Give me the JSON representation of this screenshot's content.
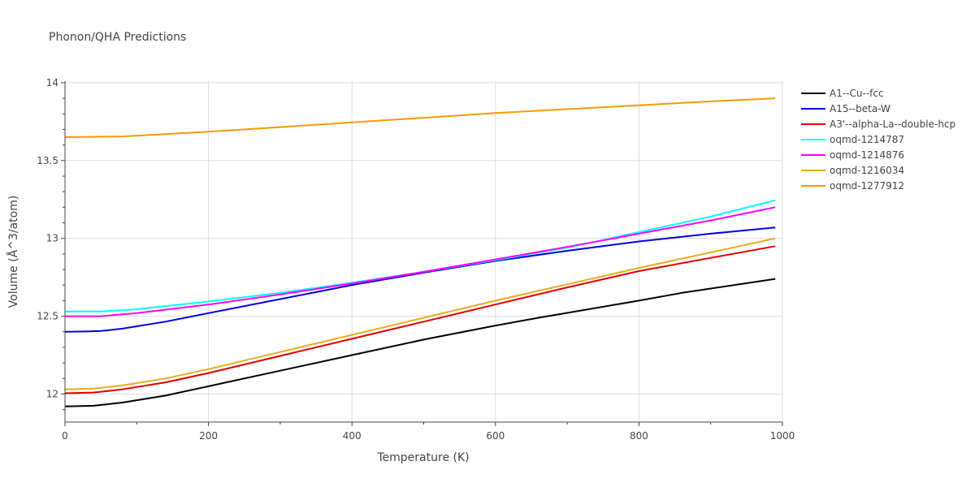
{
  "chart_data": {
    "type": "line",
    "title": "Phonon/QHA Predictions",
    "xlabel": "Temperature (K)",
    "ylabel": "Volume (Å^3/atom)",
    "xlim": [
      0,
      1000
    ],
    "ylim": [
      11.82,
      14.01
    ],
    "x_ticks": [
      0,
      200,
      400,
      600,
      800,
      1000
    ],
    "x_tick_labels": [
      "0",
      "200",
      "400",
      "600",
      "800",
      "1000"
    ],
    "y_ticks": [
      12,
      12.5,
      13,
      13.5,
      14
    ],
    "y_tick_labels": [
      "12",
      "12.5",
      "13",
      "13.5",
      "14"
    ],
    "grid": true,
    "legend_position": "right",
    "series": [
      {
        "name": "A1--Cu--fcc",
        "color": "#000000",
        "x": [
          0,
          40,
          80,
          140,
          200,
          300,
          400,
          500,
          600,
          660,
          800,
          860,
          990
        ],
        "y": [
          11.92,
          11.925,
          11.945,
          11.99,
          12.05,
          12.15,
          12.25,
          12.35,
          12.44,
          12.49,
          12.6,
          12.65,
          12.74
        ]
      },
      {
        "name": "A15--beta-W",
        "color": "#0000dd",
        "x": [
          0,
          30,
          50,
          80,
          140,
          200,
          300,
          400,
          500,
          600,
          700,
          800,
          900,
          990
        ],
        "y": [
          12.4,
          12.402,
          12.405,
          12.42,
          12.465,
          12.52,
          12.61,
          12.7,
          12.78,
          12.855,
          12.92,
          12.98,
          13.03,
          13.07
        ]
      },
      {
        "name": "A3'--alpha-La--double-hcp",
        "color": "#dd0000",
        "x": [
          0,
          40,
          80,
          140,
          200,
          300,
          400,
          500,
          600,
          700,
          800,
          900,
          990
        ],
        "y": [
          12.005,
          12.01,
          12.03,
          12.075,
          12.135,
          12.245,
          12.355,
          12.465,
          12.575,
          12.685,
          12.79,
          12.875,
          12.95
        ]
      },
      {
        "name": "oqmd-1214787",
        "color": "#00ffff",
        "x": [
          0,
          50,
          100,
          200,
          300,
          400,
          500,
          600,
          700,
          800,
          900,
          990
        ],
        "y": [
          12.53,
          12.53,
          12.545,
          12.595,
          12.65,
          12.715,
          12.785,
          12.86,
          12.94,
          13.04,
          13.14,
          13.245
        ]
      },
      {
        "name": "oqmd-1214876",
        "color": "#ff00ff",
        "x": [
          0,
          50,
          100,
          200,
          300,
          400,
          500,
          600,
          700,
          800,
          900,
          990
        ],
        "y": [
          12.5,
          12.5,
          12.52,
          12.575,
          12.64,
          12.71,
          12.785,
          12.865,
          12.945,
          13.03,
          13.115,
          13.2
        ]
      },
      {
        "name": "oqmd-1216034",
        "color": "#e8ac20",
        "x": [
          0,
          40,
          80,
          140,
          200,
          300,
          400,
          500,
          600,
          700,
          800,
          900,
          990
        ],
        "y": [
          12.03,
          12.035,
          12.055,
          12.1,
          12.16,
          12.27,
          12.38,
          12.49,
          12.6,
          12.705,
          12.81,
          12.91,
          13.0
        ]
      },
      {
        "name": "oqmd-1277912",
        "color": "#f59a00",
        "x": [
          0,
          40,
          80,
          140,
          200,
          300,
          400,
          500,
          600,
          700,
          800,
          900,
          990
        ],
        "y": [
          13.65,
          13.653,
          13.655,
          13.67,
          13.685,
          13.715,
          13.745,
          13.775,
          13.805,
          13.83,
          13.855,
          13.88,
          13.9
        ]
      }
    ]
  }
}
